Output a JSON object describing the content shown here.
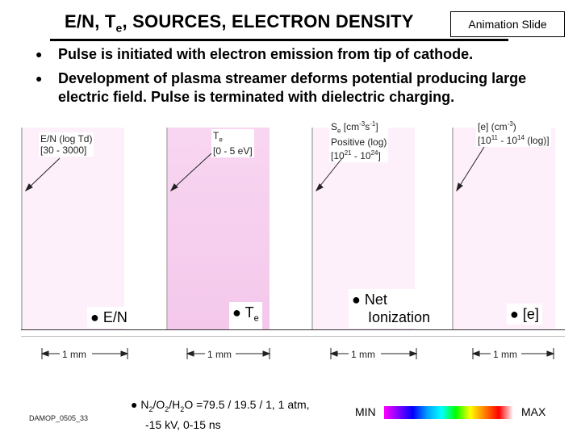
{
  "title": {
    "part1": "E/N, T",
    "sub": "e",
    "part2": ", SOURCES, ELECTRON DENSITY"
  },
  "animation_label": "Animation Slide",
  "bullets": [
    "Pulse is initiated with electron emission from tip of cathode.",
    "Development of plasma streamer deforms potential producing large electric field. Pulse is terminated with dielectric charging."
  ],
  "panels": [
    {
      "label_lines": [
        "E/N (log Td)",
        "[30 - 3000]"
      ],
      "indicator": "E/N"
    },
    {
      "label_lines": [
        "Te",
        "[0 - 5 eV]"
      ],
      "indicator": "Te"
    },
    {
      "label_lines": [
        "Se [cm-3s-1]",
        "Positive (log)",
        "[1021 - 1024]"
      ],
      "indicator_line1": "Net",
      "indicator_line2": "Ionization"
    },
    {
      "label_lines": [
        "[e] (cm-3)",
        "[1011 - 1014 (log)]"
      ],
      "indicator": "[e]"
    }
  ],
  "scale_label": "1 mm",
  "footer_id": "DAMOP_0505_33",
  "conditions": {
    "line1_a": "N",
    "sub1": "2",
    "line1_b": "/O",
    "sub2": "2",
    "line1_c": "/H",
    "sub3": "2",
    "line1_d": "O =79.5 / 19.5 / 1, 1 atm,",
    "line2": "-15 kV, 0-15 ns"
  },
  "colorbar": {
    "min": "MIN",
    "max": "MAX"
  }
}
